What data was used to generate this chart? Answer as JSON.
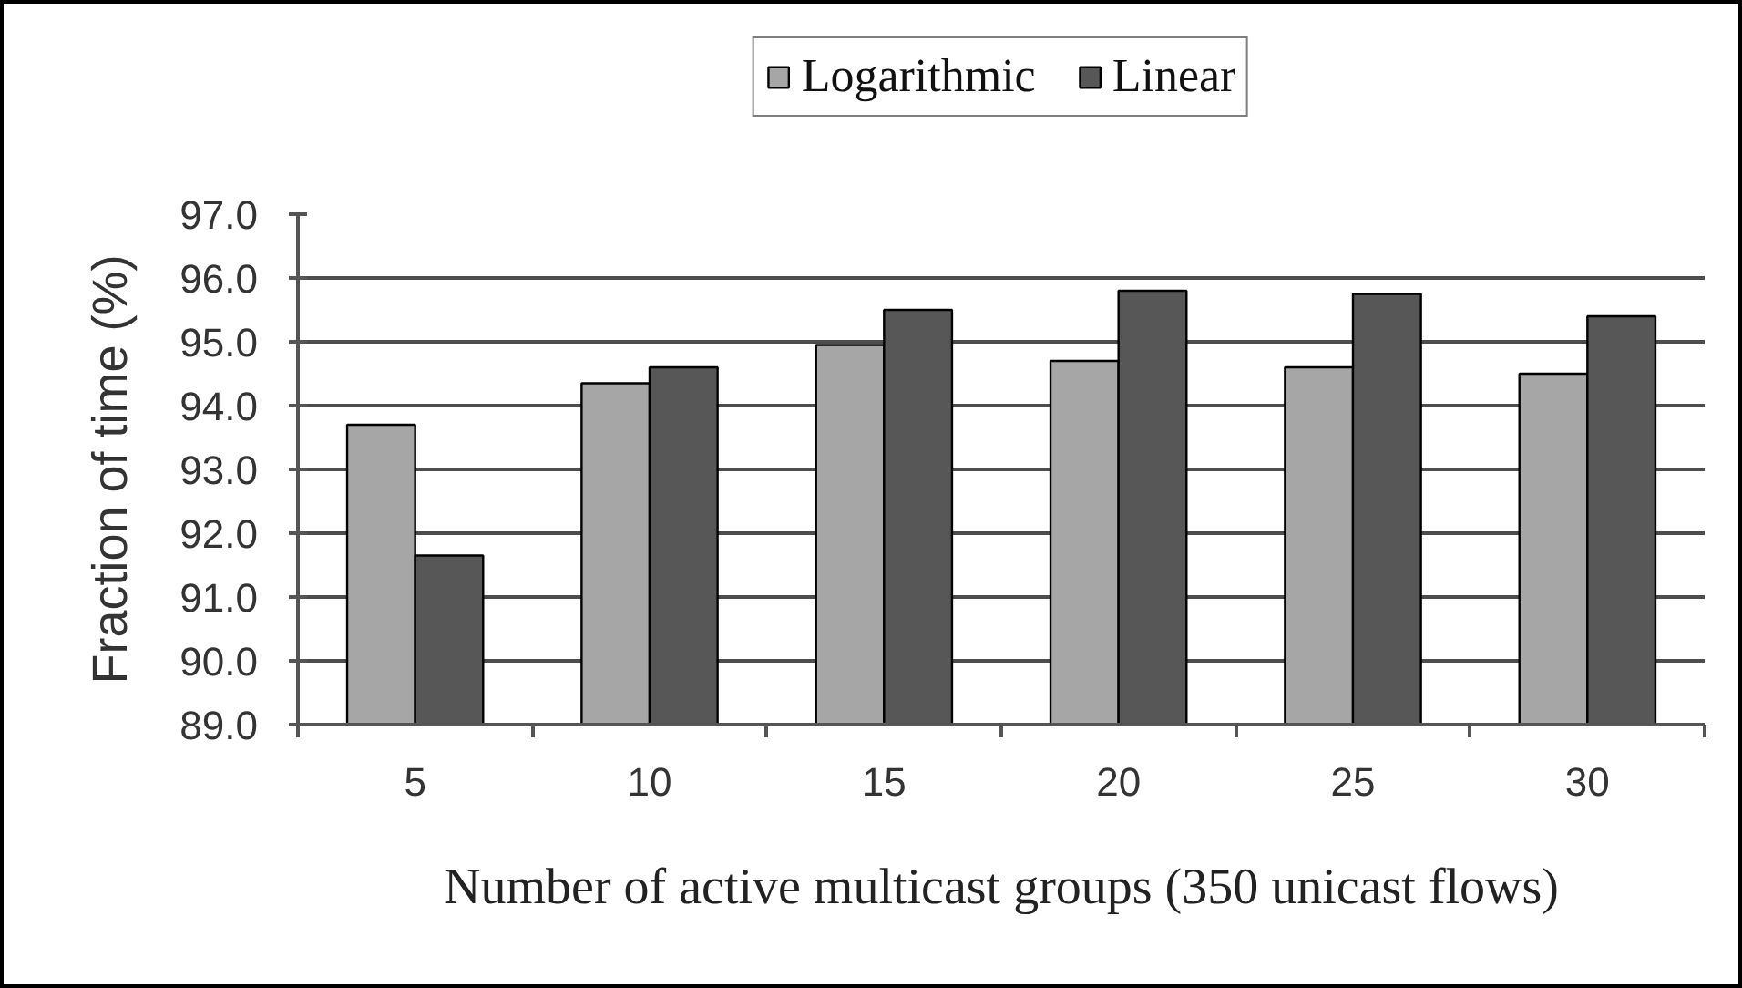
{
  "chart_data": {
    "type": "bar",
    "xlabel": "Number of active multicast groups (350 unicast flows)",
    "ylabel": "Fraction of time (%)",
    "categories": [
      "5",
      "10",
      "15",
      "20",
      "25",
      "30"
    ],
    "series": [
      {
        "name": "Logarithmic",
        "color": "#a6a6a6",
        "values": [
          93.7,
          94.35,
          94.95,
          94.7,
          94.6,
          94.5
        ]
      },
      {
        "name": "Linear",
        "color": "#575757",
        "values": [
          91.65,
          94.6,
          95.5,
          95.8,
          95.75,
          95.4
        ]
      }
    ],
    "ylim": [
      89,
      97
    ],
    "yticks": [
      {
        "value": 89,
        "label": "89.0"
      },
      {
        "value": 90,
        "label": "90.0"
      },
      {
        "value": 91,
        "label": "91.0"
      },
      {
        "value": 92,
        "label": "92.0"
      },
      {
        "value": 93,
        "label": "93.0"
      },
      {
        "value": 94,
        "label": "94.0"
      },
      {
        "value": 95,
        "label": "95.0"
      },
      {
        "value": 96,
        "label": "96.0"
      },
      {
        "value": 97,
        "label": "97.0"
      }
    ],
    "grid": "y",
    "legend": "top"
  }
}
